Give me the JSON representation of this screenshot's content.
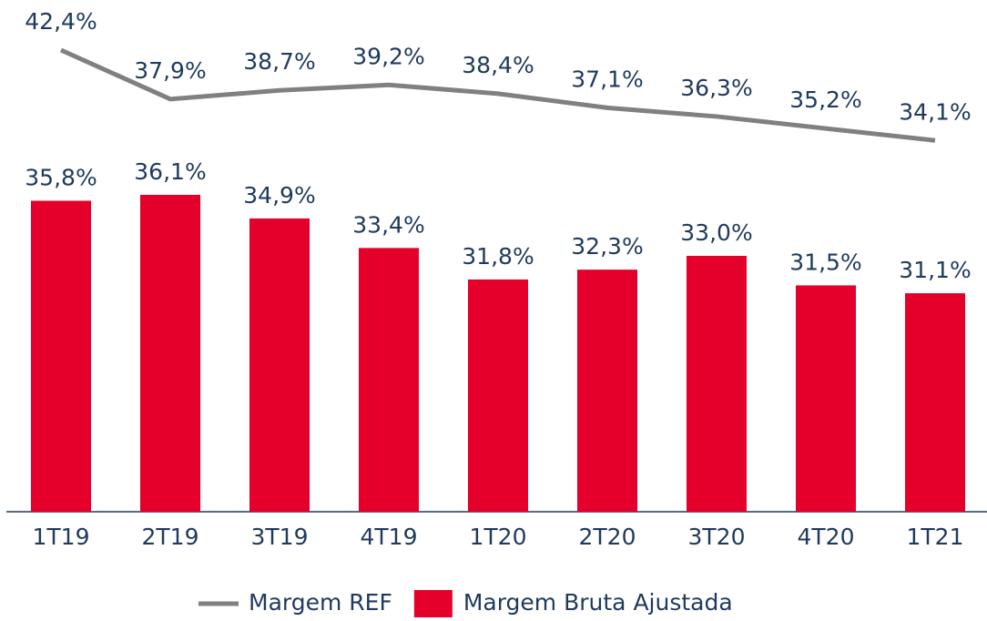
{
  "chart_data": {
    "type": "bar-line",
    "categories": [
      "1T19",
      "2T19",
      "3T19",
      "4T19",
      "1T20",
      "2T20",
      "3T20",
      "4T20",
      "1T21"
    ],
    "series": [
      {
        "name": "Margem REF",
        "type": "line",
        "axis": "y2",
        "color": "#808080",
        "values": [
          42.4,
          37.9,
          38.7,
          39.2,
          38.4,
          37.1,
          36.3,
          35.2,
          34.1
        ],
        "value_labels": [
          "42,4%",
          "37,9%",
          "38,7%",
          "39,2%",
          "38,4%",
          "37,1%",
          "36,3%",
          "35,2%",
          "34,1%"
        ]
      },
      {
        "name": "Margem Bruta Ajustada",
        "type": "bar",
        "color": "#e4002b",
        "values": [
          35.8,
          36.1,
          34.9,
          33.4,
          31.8,
          32.3,
          33.0,
          31.5,
          31.1
        ],
        "value_labels": [
          "35,8%",
          "36,1%",
          "34,9%",
          "33,4%",
          "31,8%",
          "32,3%",
          "33,0%",
          "31,5%",
          "31,1%"
        ]
      }
    ],
    "ylim": [
      20,
      46
    ],
    "y2lim": [
      0,
      47
    ],
    "legend": "bottom"
  }
}
